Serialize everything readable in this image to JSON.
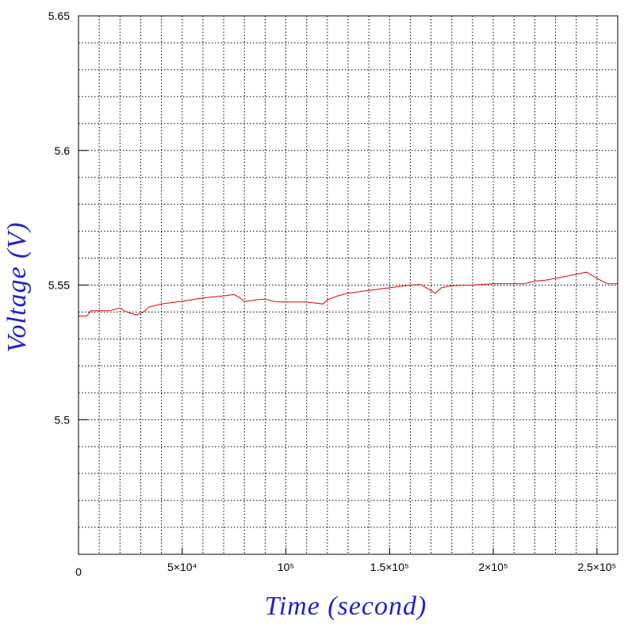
{
  "chart_data": {
    "type": "line",
    "title": "",
    "xlabel": "Time (second)",
    "ylabel": "Voltage (V)",
    "xlim": [
      0,
      260000
    ],
    "ylim": [
      5.45,
      5.65
    ],
    "grid": true,
    "x_ticks": [
      {
        "value": 0,
        "label": "0"
      },
      {
        "value": 50000,
        "label": "5×10⁴"
      },
      {
        "value": 100000,
        "label": "10⁵"
      },
      {
        "value": 150000,
        "label": "1.5×10⁵"
      },
      {
        "value": 200000,
        "label": "2×10⁵"
      },
      {
        "value": 250000,
        "label": "2.5×10⁵"
      }
    ],
    "y_ticks": [
      {
        "value": 5.5,
        "label": "5.5"
      },
      {
        "value": 5.55,
        "label": "5.55"
      },
      {
        "value": 5.6,
        "label": "5.6"
      },
      {
        "value": 5.65,
        "label": "5.65"
      }
    ],
    "x_minor_step": 10000,
    "y_minor_step": 0.01,
    "colors": {
      "series": "#e00000",
      "axis_title": "#2323c8",
      "grid": "#000000",
      "frame": "#000000"
    },
    "series": [
      {
        "x": [
          0,
          4000,
          6000,
          10000,
          15000,
          20000,
          22000,
          25000,
          28000,
          31000,
          34000,
          40000,
          50000,
          60000,
          70000,
          75000,
          78000,
          80000,
          85000,
          90000,
          95000,
          100000,
          110000,
          118000,
          120000,
          125000,
          130000,
          140000,
          150000,
          160000,
          165000,
          170000,
          172000,
          175000,
          180000,
          190000,
          200000,
          210000,
          215000,
          220000,
          225000,
          230000,
          240000,
          245000,
          250000,
          255000,
          260000
        ],
        "y": [
          5.5385,
          5.5385,
          5.5405,
          5.5405,
          5.5405,
          5.5415,
          5.5405,
          5.5395,
          5.539,
          5.5398,
          5.5418,
          5.543,
          5.544,
          5.5452,
          5.546,
          5.5465,
          5.5452,
          5.5438,
          5.5445,
          5.5448,
          5.5438,
          5.5437,
          5.5437,
          5.543,
          5.5445,
          5.546,
          5.547,
          5.548,
          5.549,
          5.55,
          5.5502,
          5.548,
          5.547,
          5.549,
          5.5498,
          5.55,
          5.5505,
          5.5505,
          5.5505,
          5.5515,
          5.5518,
          5.5525,
          5.554,
          5.5548,
          5.5525,
          5.5505,
          5.5505
        ]
      }
    ]
  }
}
